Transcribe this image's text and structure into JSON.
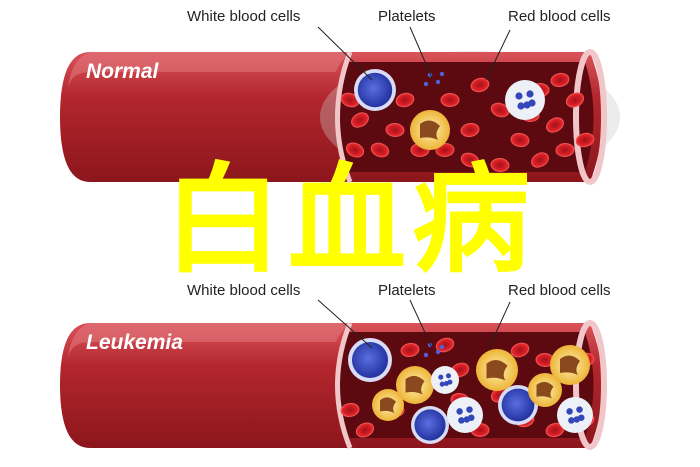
{
  "overlay_title": "白血病",
  "vessels": [
    {
      "title": "Normal",
      "labels": {
        "wbc": "White blood cells",
        "platelets": "Platelets",
        "rbc": "Red blood cells"
      }
    },
    {
      "title": "Leukemia",
      "labels": {
        "wbc": "White blood cells",
        "platelets": "Platelets",
        "rbc": "Red blood cells"
      }
    }
  ],
  "colors": {
    "vessel_wall": "#b3262d",
    "vessel_dark": "#7a1216",
    "vessel_inner": "#5c0a10",
    "rbc": "#d91f26",
    "wbc_blue": "#2a3fb5",
    "wbc_white": "#eef0f8",
    "wbc_yellow": "#f2b52a",
    "overlay": "#ffff00"
  }
}
